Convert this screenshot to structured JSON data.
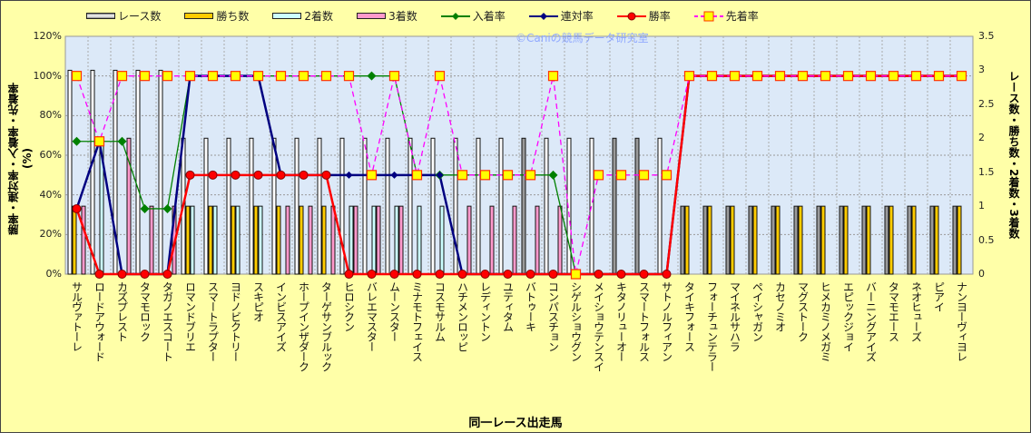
{
  "chart_data": {
    "type": "bar",
    "watermark": "©Caniの競馬データ研究室",
    "xlabel": "同一レース出走馬",
    "ylabel_left": "勝率・連対率・入着率・先着率(%)",
    "ylabel_right": "レース数・勝ち数・2着数・3着数",
    "ylim_left": [
      0,
      120
    ],
    "ylim_right": [
      0,
      3.5
    ],
    "yticks_left": [
      "0%",
      "20%",
      "40%",
      "60%",
      "80%",
      "100%",
      "120%"
    ],
    "yticks_right": [
      "0",
      "0.5",
      "1",
      "1.5",
      "2",
      "2.5",
      "3",
      "3.5"
    ],
    "grid": true,
    "legend_position": "top",
    "categories": [
      "サルヴァトーレ",
      "ロードアウォード",
      "カズプレスト",
      "タマモロック",
      "タガノエスコート",
      "ロマンドブリエ",
      "スマートラプター",
      "ヨドノビクトリー",
      "スキピオ",
      "インビスアイズ",
      "ホープインザダーク",
      "ターゲサンブルック",
      "ヒロシクン",
      "バレエマスター",
      "ムーンスター",
      "ミナモトフェイス",
      "コスモサルム",
      "ハチメンロッピ",
      "レディントン",
      "ユティタム",
      "バトゥーキ",
      "コンパスチョン",
      "シゲルショウグン",
      "メイショウテンスイ",
      "キタノリューオー",
      "スマートフォルス",
      "サトノルフィアン",
      "タイキフォース",
      "フォーチュンテラー",
      "マイネルサハラ",
      "ペイシャガン",
      "カセノミオ",
      "マグストーク",
      "ヒメカミノメガミ",
      "エピックジョイ",
      "バーニングアイズ",
      "タマモエース",
      "ネオヒューズ",
      "ピアイ",
      "ナンヨーヴィヨレ"
    ],
    "bar_series": [
      {
        "name": "レース数",
        "color": "#ffffff",
        "values": [
          3,
          3,
          3,
          3,
          3,
          2,
          2,
          2,
          2,
          2,
          2,
          2,
          2,
          2,
          2,
          2,
          2,
          2,
          2,
          2,
          2,
          2,
          2,
          2,
          2,
          2,
          2,
          1,
          1,
          1,
          1,
          1,
          1,
          1,
          1,
          1,
          1,
          1,
          1,
          1
        ]
      },
      {
        "name": "勝ち数",
        "color": "#ffcc00",
        "values": [
          1,
          0,
          0,
          0,
          0,
          1,
          1,
          1,
          1,
          1,
          1,
          1,
          0,
          0,
          0,
          0,
          0,
          0,
          0,
          0,
          0,
          0,
          0,
          0,
          0,
          0,
          0,
          1,
          1,
          1,
          1,
          1,
          1,
          1,
          1,
          1,
          1,
          1,
          1,
          1
        ]
      },
      {
        "name": "2着数",
        "color": "#ccffff",
        "values": [
          0,
          2,
          0,
          0,
          0,
          1,
          1,
          1,
          1,
          0,
          0,
          0,
          1,
          1,
          1,
          1,
          1,
          0,
          0,
          0,
          0,
          0,
          0,
          0,
          0,
          0,
          0,
          0,
          0,
          0,
          0,
          0,
          0,
          0,
          0,
          0,
          0,
          0,
          0,
          0
        ]
      },
      {
        "name": "3着数",
        "color": "#ff99cc",
        "values": [
          1,
          0,
          2,
          1,
          1,
          0,
          0,
          0,
          0,
          1,
          1,
          1,
          1,
          1,
          1,
          0,
          0,
          1,
          1,
          1,
          1,
          1,
          0,
          0,
          0,
          0,
          0,
          0,
          0,
          0,
          0,
          0,
          0,
          0,
          0,
          0,
          0,
          0,
          0,
          0
        ]
      }
    ],
    "line_series": [
      {
        "name": "入着率",
        "color": "#008000",
        "marker": "diamond",
        "values": [
          67,
          67,
          67,
          33,
          33,
          100,
          100,
          100,
          100,
          100,
          100,
          100,
          100,
          100,
          100,
          50,
          50,
          50,
          50,
          50,
          50,
          50,
          0,
          0,
          0,
          0,
          0,
          100,
          100,
          100,
          100,
          100,
          100,
          100,
          100,
          100,
          100,
          100,
          100,
          100
        ]
      },
      {
        "name": "連対率",
        "color": "#000080",
        "marker": "diamond-small",
        "values": [
          33,
          67,
          0,
          0,
          0,
          100,
          100,
          100,
          100,
          50,
          50,
          50,
          50,
          50,
          50,
          50,
          50,
          0,
          0,
          0,
          0,
          0,
          0,
          0,
          0,
          0,
          0,
          100,
          100,
          100,
          100,
          100,
          100,
          100,
          100,
          100,
          100,
          100,
          100,
          100
        ]
      },
      {
        "name": "勝率",
        "color": "#ff0000",
        "marker": "circle",
        "values": [
          33,
          0,
          0,
          0,
          0,
          50,
          50,
          50,
          50,
          50,
          50,
          50,
          0,
          0,
          0,
          0,
          0,
          0,
          0,
          0,
          0,
          0,
          0,
          0,
          0,
          0,
          0,
          100,
          100,
          100,
          100,
          100,
          100,
          100,
          100,
          100,
          100,
          100,
          100,
          100
        ]
      },
      {
        "name": "先着率",
        "color": "#ff00ff",
        "marker": "square",
        "values": [
          100,
          67,
          100,
          100,
          100,
          100,
          100,
          100,
          100,
          100,
          100,
          100,
          100,
          50,
          100,
          50,
          100,
          50,
          50,
          50,
          50,
          100,
          0,
          50,
          50,
          50,
          50,
          100,
          100,
          100,
          100,
          100,
          100,
          100,
          100,
          100,
          100,
          100,
          100,
          100
        ]
      }
    ]
  }
}
